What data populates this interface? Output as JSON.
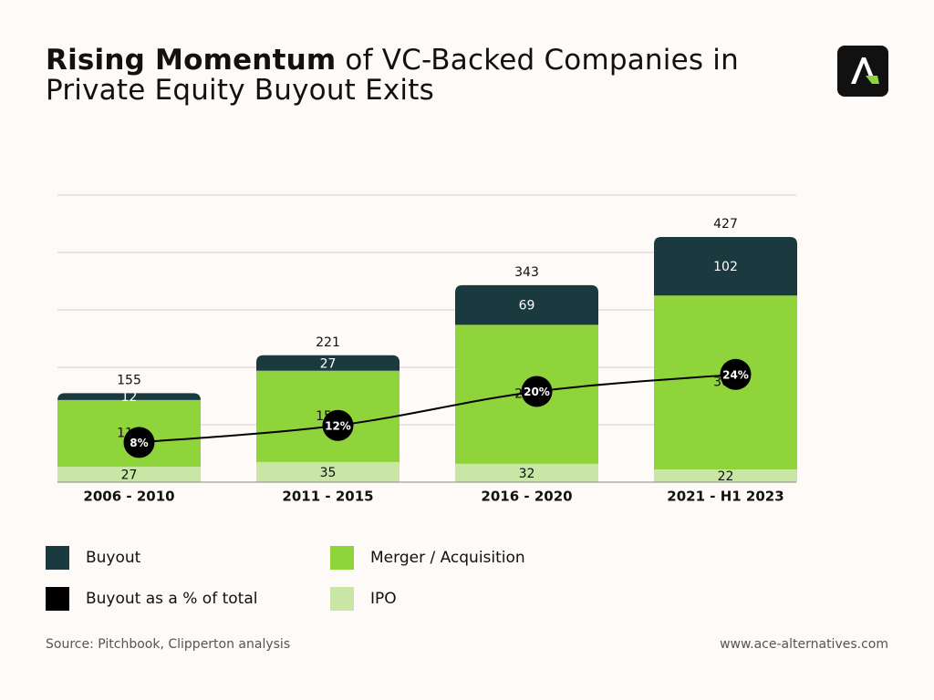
{
  "header": {
    "title_bold": "Rising Momentum",
    "title_rest": " of VC-Backed Companies in Private Equity Buyout Exits",
    "logo_icon": "ace-logo-icon"
  },
  "colors": {
    "buyout": "#1a3a3f",
    "merger": "#8ed43a",
    "ipo": "#c9e6a6",
    "line": "#000000",
    "grid": "#d0d0d0"
  },
  "chart_data": {
    "type": "bar",
    "stacked": true,
    "categories": [
      "2006 - 2010",
      "2011 - 2015",
      "2016 - 2020",
      "2021 - H1 2023"
    ],
    "series": [
      {
        "name": "IPO",
        "values": [
          27,
          35,
          32,
          22
        ]
      },
      {
        "name": "Merger / Acquisition",
        "values": [
          116,
          159,
          242,
          303
        ]
      },
      {
        "name": "Buyout",
        "values": [
          12,
          27,
          69,
          102
        ]
      }
    ],
    "totals": [
      155,
      221,
      343,
      427
    ],
    "line_series": {
      "name": "Buyout as a % of total",
      "values": [
        8,
        12,
        20,
        24
      ],
      "labels": [
        "8%",
        "12%",
        "20%",
        "24%"
      ]
    },
    "ylim": [
      0,
      500
    ],
    "grid": true,
    "legend_position": "bottom"
  },
  "legend": [
    {
      "label": "Buyout",
      "key": "buyout"
    },
    {
      "label": "Merger / Acquisition",
      "key": "merger"
    },
    {
      "label": "Buyout as a % of total",
      "key": "line"
    },
    {
      "label": "IPO",
      "key": "ipo"
    }
  ],
  "footer": {
    "source": "Source: Pitchbook, Clipperton analysis",
    "website": "www.ace-alternatives.com"
  }
}
